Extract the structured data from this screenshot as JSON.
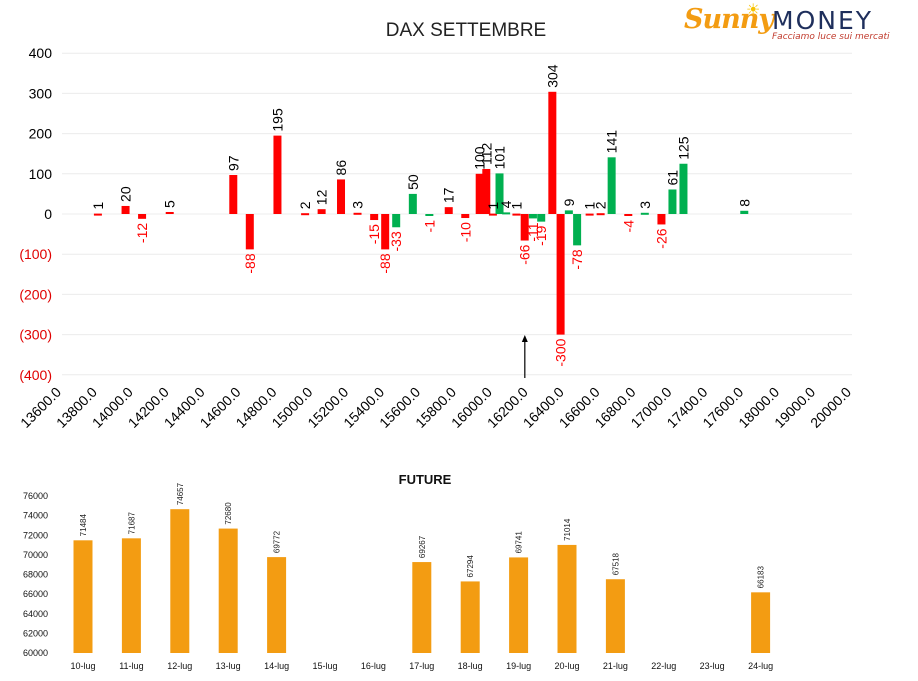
{
  "colors": {
    "positive": "#00b050",
    "negative": "#ff0000",
    "future_bar": "#f39c12",
    "negative_tick_text": "#e00000",
    "axis_text": "#000000"
  },
  "logo": {
    "brand_sunny": "Sunny",
    "brand_money": "MONEY",
    "tagline": "Facciamo luce sui mercati"
  },
  "chart_data": [
    {
      "type": "bar",
      "title": "DAX SETTEMBRE",
      "xlabel": "",
      "ylabel": "",
      "ylim": [
        -400,
        400
      ],
      "yticks": [
        400,
        300,
        200,
        100,
        0,
        -100,
        -200,
        -300,
        -400
      ],
      "ytick_labels": [
        "400",
        "300",
        "200",
        "100",
        "0",
        "(100)",
        "(200)",
        "(300)",
        "(400)"
      ],
      "x_tick_labels": [
        "13600.0",
        "13800.0",
        "14000.0",
        "14200.0",
        "14400.0",
        "14600.0",
        "14800.0",
        "15000.0",
        "15200.0",
        "15400.0",
        "15600.0",
        "15800.0",
        "16000.0",
        "16200.0",
        "16400.0",
        "16600.0",
        "16800.0",
        "17000.0",
        "17400.0",
        "17600.0",
        "18000.0",
        "19000.0",
        "20000.0"
      ],
      "grid": true,
      "legend": "none",
      "annotation": "arrow at 16200.0",
      "series": [
        {
          "color_role": "negative",
          "points": [
            {
              "x": "13800.0",
              "value": 1
            },
            {
              "x": "14000.0",
              "value": 20
            },
            {
              "x": "14000.0",
              "value": -12
            },
            {
              "x": "14200.0",
              "value": 5
            },
            {
              "x": "14600.0",
              "value": 97
            },
            {
              "x": "14600.0",
              "value": -88
            },
            {
              "x": "14800.0",
              "value": 195
            },
            {
              "x": "15000.0",
              "value": 2
            },
            {
              "x": "15000.0",
              "value": 12
            },
            {
              "x": "15200.0",
              "value": 86
            },
            {
              "x": "15200.0",
              "value": 3
            },
            {
              "x": "15400.0",
              "value": -15
            },
            {
              "x": "15400.0",
              "value": -88
            },
            {
              "x": "15800.0",
              "value": 17
            },
            {
              "x": "15800.0",
              "value": -10
            },
            {
              "x": "16000.0",
              "value": 100
            },
            {
              "x": "16000.0",
              "value": 112
            },
            {
              "x": "16000.0",
              "value": 1
            },
            {
              "x": "16200.0",
              "value": 1
            },
            {
              "x": "16200.0",
              "value": -66
            },
            {
              "x": "16400.0",
              "value": 304
            },
            {
              "x": "16400.0",
              "value": -300
            },
            {
              "x": "16600.0",
              "value": 1
            },
            {
              "x": "16600.0",
              "value": 2
            },
            {
              "x": "16800.0",
              "value": -4
            },
            {
              "x": "17000.0",
              "value": -26
            }
          ]
        },
        {
          "color_role": "positive",
          "points": [
            {
              "x": "15400.0",
              "value": -33
            },
            {
              "x": "15600.0",
              "value": 50
            },
            {
              "x": "15600.0",
              "value": -1
            },
            {
              "x": "16000.0",
              "value": 101
            },
            {
              "x": "16000.0",
              "value": 4
            },
            {
              "x": "16200.0",
              "value": -11
            },
            {
              "x": "16200.0",
              "value": -19
            },
            {
              "x": "16400.0",
              "value": 9
            },
            {
              "x": "16400.0",
              "value": -78
            },
            {
              "x": "16600.0",
              "value": 141
            },
            {
              "x": "16800.0",
              "value": 3
            },
            {
              "x": "17000.0",
              "value": 61
            },
            {
              "x": "17000.0",
              "value": 125
            },
            {
              "x": "17600.0",
              "value": 8
            }
          ]
        }
      ]
    },
    {
      "type": "bar",
      "title": "FUTURE",
      "xlabel": "",
      "ylabel": "",
      "ylim": [
        60000,
        76000
      ],
      "yticks": [
        76000,
        74000,
        72000,
        70000,
        68000,
        66000,
        64000,
        62000,
        60000
      ],
      "categories": [
        "10-lug",
        "11-lug",
        "12-lug",
        "13-lug",
        "14-lug",
        "15-lug",
        "16-lug",
        "17-lug",
        "18-lug",
        "19-lug",
        "20-lug",
        "21-lug",
        "22-lug",
        "23-lug",
        "24-lug"
      ],
      "values": [
        71484,
        71687,
        74657,
        72680,
        69772,
        null,
        null,
        69267,
        67294,
        69741,
        71014,
        67518,
        null,
        null,
        66183
      ],
      "grid": false,
      "legend": "none"
    }
  ]
}
